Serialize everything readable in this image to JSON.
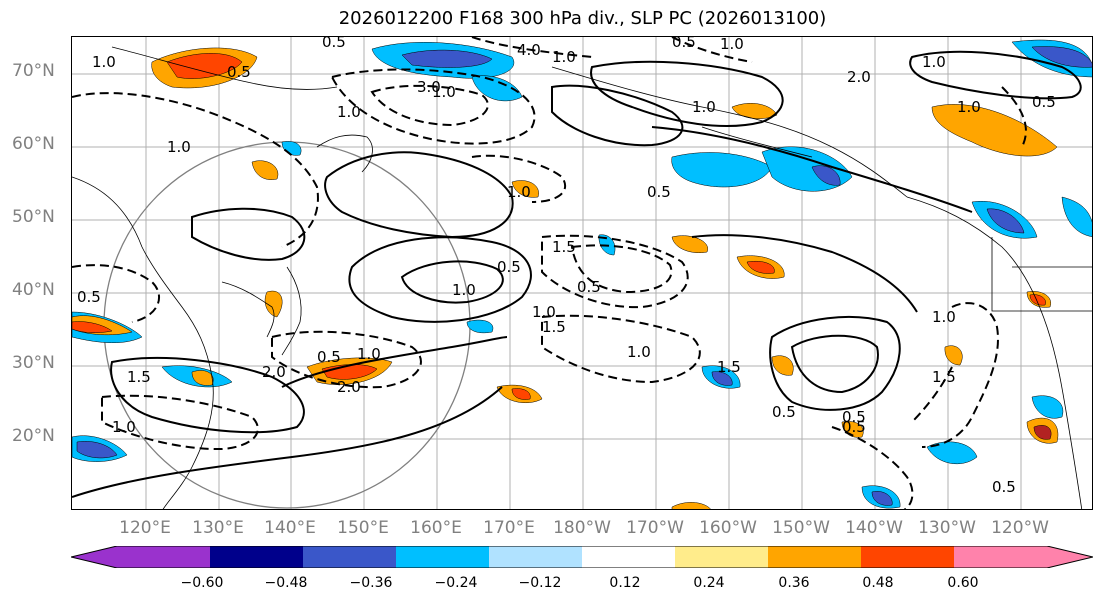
{
  "title": "2026012200 F168 300 hPa div., SLP PC (2026013100)",
  "lat_labels": [
    "70°N",
    "60°N",
    "50°N",
    "40°N",
    "30°N",
    "20°N"
  ],
  "lon_labels": [
    "120°E",
    "130°E",
    "140°E",
    "150°E",
    "160°E",
    "170°E",
    "180°W",
    "170°W",
    "160°W",
    "150°W",
    "140°W",
    "130°W",
    "120°W"
  ],
  "colorbar": {
    "ticks": [
      "−0.60",
      "−0.48",
      "−0.36",
      "−0.24",
      "−0.12",
      "0.12",
      "0.24",
      "0.36",
      "0.48",
      "0.60"
    ],
    "colors": [
      "#9a32cd",
      "#00008b",
      "#3a57c9",
      "#00bfff",
      "#b0e2ff",
      "#ffffff",
      "#ffec8b",
      "#ffa500",
      "#ff4500",
      "#b22222",
      "#ff82ab"
    ]
  },
  "contour_labels": [
    "1.0",
    "0.5",
    "0.5",
    "1.0",
    "3.0",
    "4.0",
    "1.0",
    "0.5",
    "1.0",
    "2.0",
    "1.0",
    "1.0",
    "1.0",
    "0.5",
    "1.0",
    "1.5",
    "0.5",
    "1.0",
    "0.5",
    "1.0",
    "1.5",
    "2.0",
    "0.5",
    "1.0",
    "1.5",
    "2.0",
    "0.5",
    "1.0",
    "1.0",
    "1.5",
    "0.5",
    "0.5",
    "1.0",
    "1.0",
    "0.5",
    "1.0",
    "1.5",
    "0.5",
    "0.5"
  ],
  "map_geo": {
    "lat_range": [
      10,
      75
    ],
    "lon_range_east": [
      110,
      250
    ],
    "projection": "lat-lon"
  }
}
